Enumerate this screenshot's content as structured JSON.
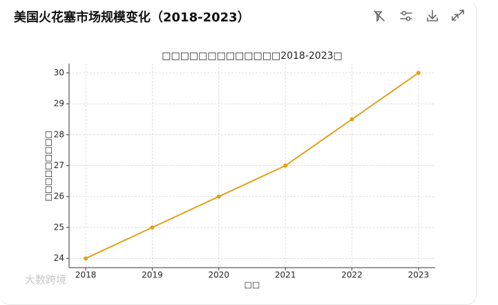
{
  "header": {
    "title": "美国火花塞市场规模变化（2018-2023）"
  },
  "chart_data": {
    "type": "line",
    "title": "□□□□□□□□□□□□□2018-2023□",
    "x_label": "□□",
    "y_label": "□□□□□□□□□",
    "x": [
      2018,
      2019,
      2020,
      2021,
      2022,
      2023
    ],
    "series": [
      {
        "color": "#e0a118",
        "values": [
          24,
          25,
          26,
          27,
          28.5,
          30
        ]
      }
    ],
    "xlim": [
      2017.75,
      2023.25
    ],
    "xticks": [
      2018,
      2019,
      2020,
      2021,
      2022,
      2023
    ],
    "ylim": [
      23.7,
      30.3
    ],
    "yticks": [
      24,
      25,
      26,
      27,
      28,
      29,
      30
    ],
    "grid": true
  },
  "watermark": "大数跨境"
}
